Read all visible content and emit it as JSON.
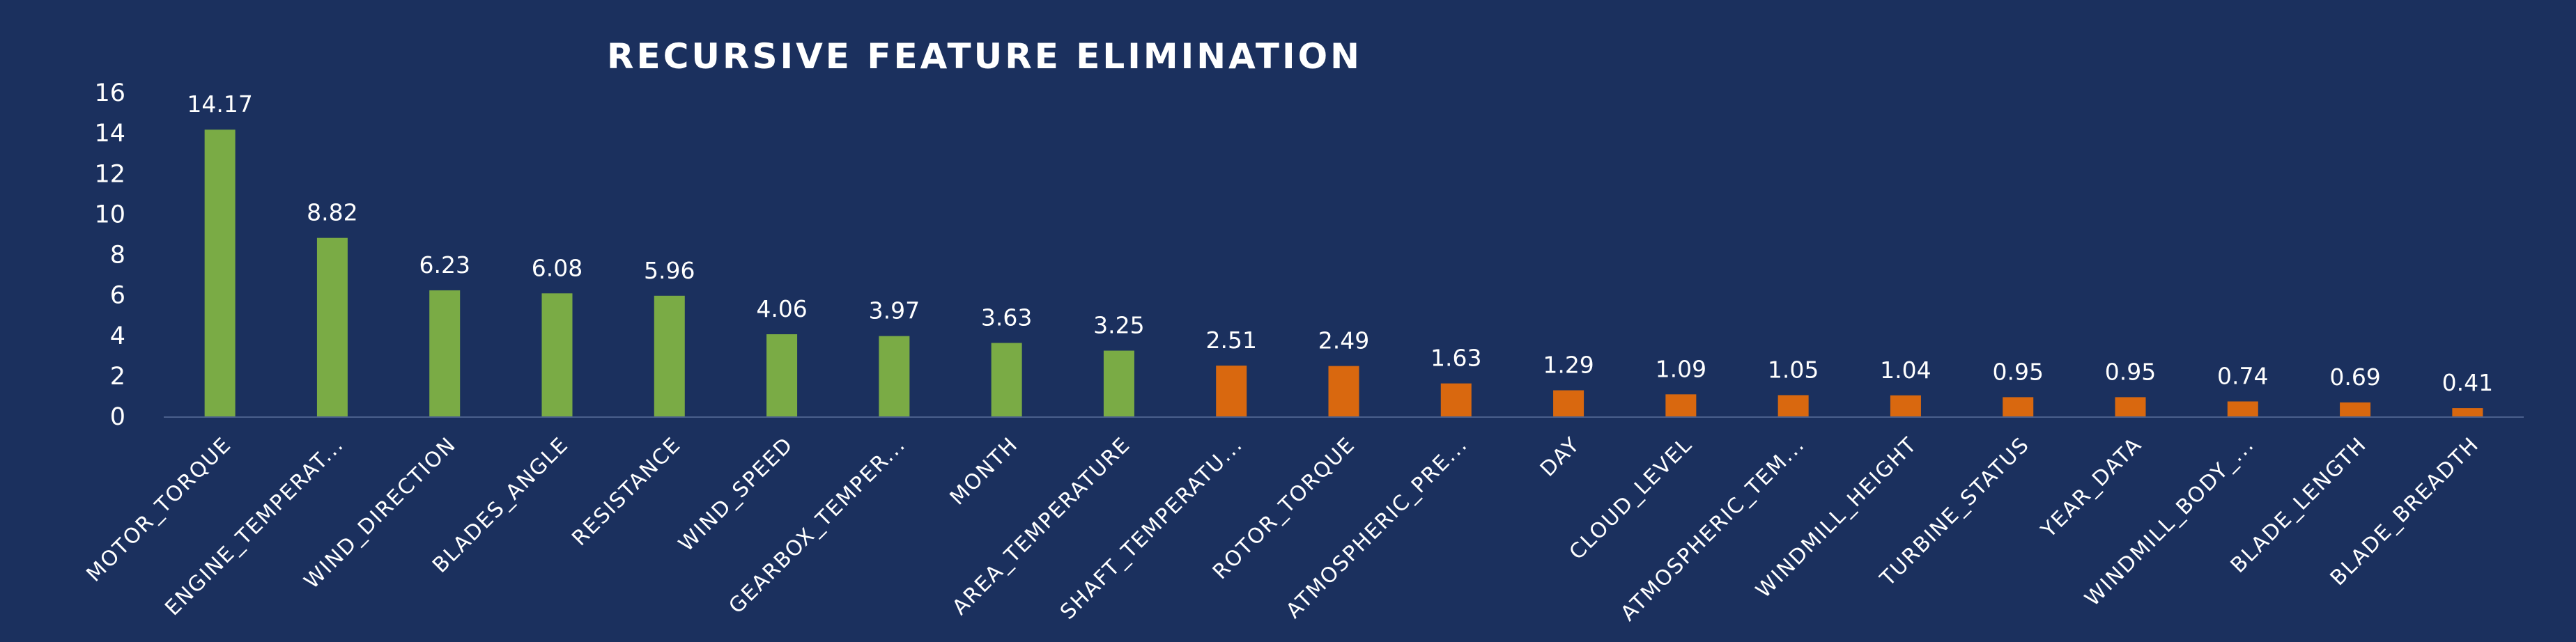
{
  "chart_data": {
    "type": "bar",
    "title": "RECURSIVE FEATURE ELIMINATION",
    "xlabel": "",
    "ylabel": "",
    "ylim": [
      0,
      16
    ],
    "yticks": [
      0,
      2,
      4,
      6,
      8,
      10,
      12,
      14,
      16
    ],
    "grid": false,
    "legend": "none",
    "categories": [
      "MOTOR_TORQUE",
      "ENGINE_TEMPERAT...",
      "WIND_DIRECTION",
      "BLADES_ANGLE",
      "RESISTANCE",
      "WIND_SPEED",
      "GEARBOX_TEMPER...",
      "MONTH",
      "AREA_TEMPERATURE",
      "SHAFT_TEMPERATU...",
      "ROTOR_TORQUE",
      "ATMOSPHERIC_PRE...",
      "DAY",
      "CLOUD_LEVEL",
      "ATMOSPHERIC_TEM...",
      "WINDMILL_HEIGHT",
      "TURBINE_STATUS",
      "YEAR_DATA",
      "WINDMILL_BODY_...",
      "BLADE_LENGTH",
      "BLADE_BREADTH"
    ],
    "values": [
      14.17,
      8.82,
      6.23,
      6.08,
      5.96,
      4.06,
      3.97,
      3.63,
      3.25,
      2.51,
      2.49,
      1.63,
      1.29,
      1.09,
      1.05,
      1.04,
      0.95,
      0.95,
      0.74,
      0.69,
      0.41
    ],
    "data_labels": [
      "14.17",
      "8.82",
      "6.23",
      "6.08",
      "5.96",
      "4.06",
      "3.97",
      "3.63",
      "3.25",
      "2.51",
      "2.49",
      "1.63",
      "1.29",
      "1.09",
      "1.05",
      "1.04",
      "0.95",
      "0.95",
      "0.74",
      "0.69",
      "0.41"
    ],
    "bar_colors": [
      "#7aab45",
      "#7aab45",
      "#7aab45",
      "#7aab45",
      "#7aab45",
      "#7aab45",
      "#7aab45",
      "#7aab45",
      "#7aab45",
      "#d9680f",
      "#d9680f",
      "#d9680f",
      "#d9680f",
      "#d9680f",
      "#d9680f",
      "#d9680f",
      "#d9680f",
      "#d9680f",
      "#d9680f",
      "#d9680f",
      "#d9680f"
    ]
  },
  "colors": {
    "background": "#1b305e",
    "text": "#ffffff",
    "axis": "#4a5f8c"
  }
}
